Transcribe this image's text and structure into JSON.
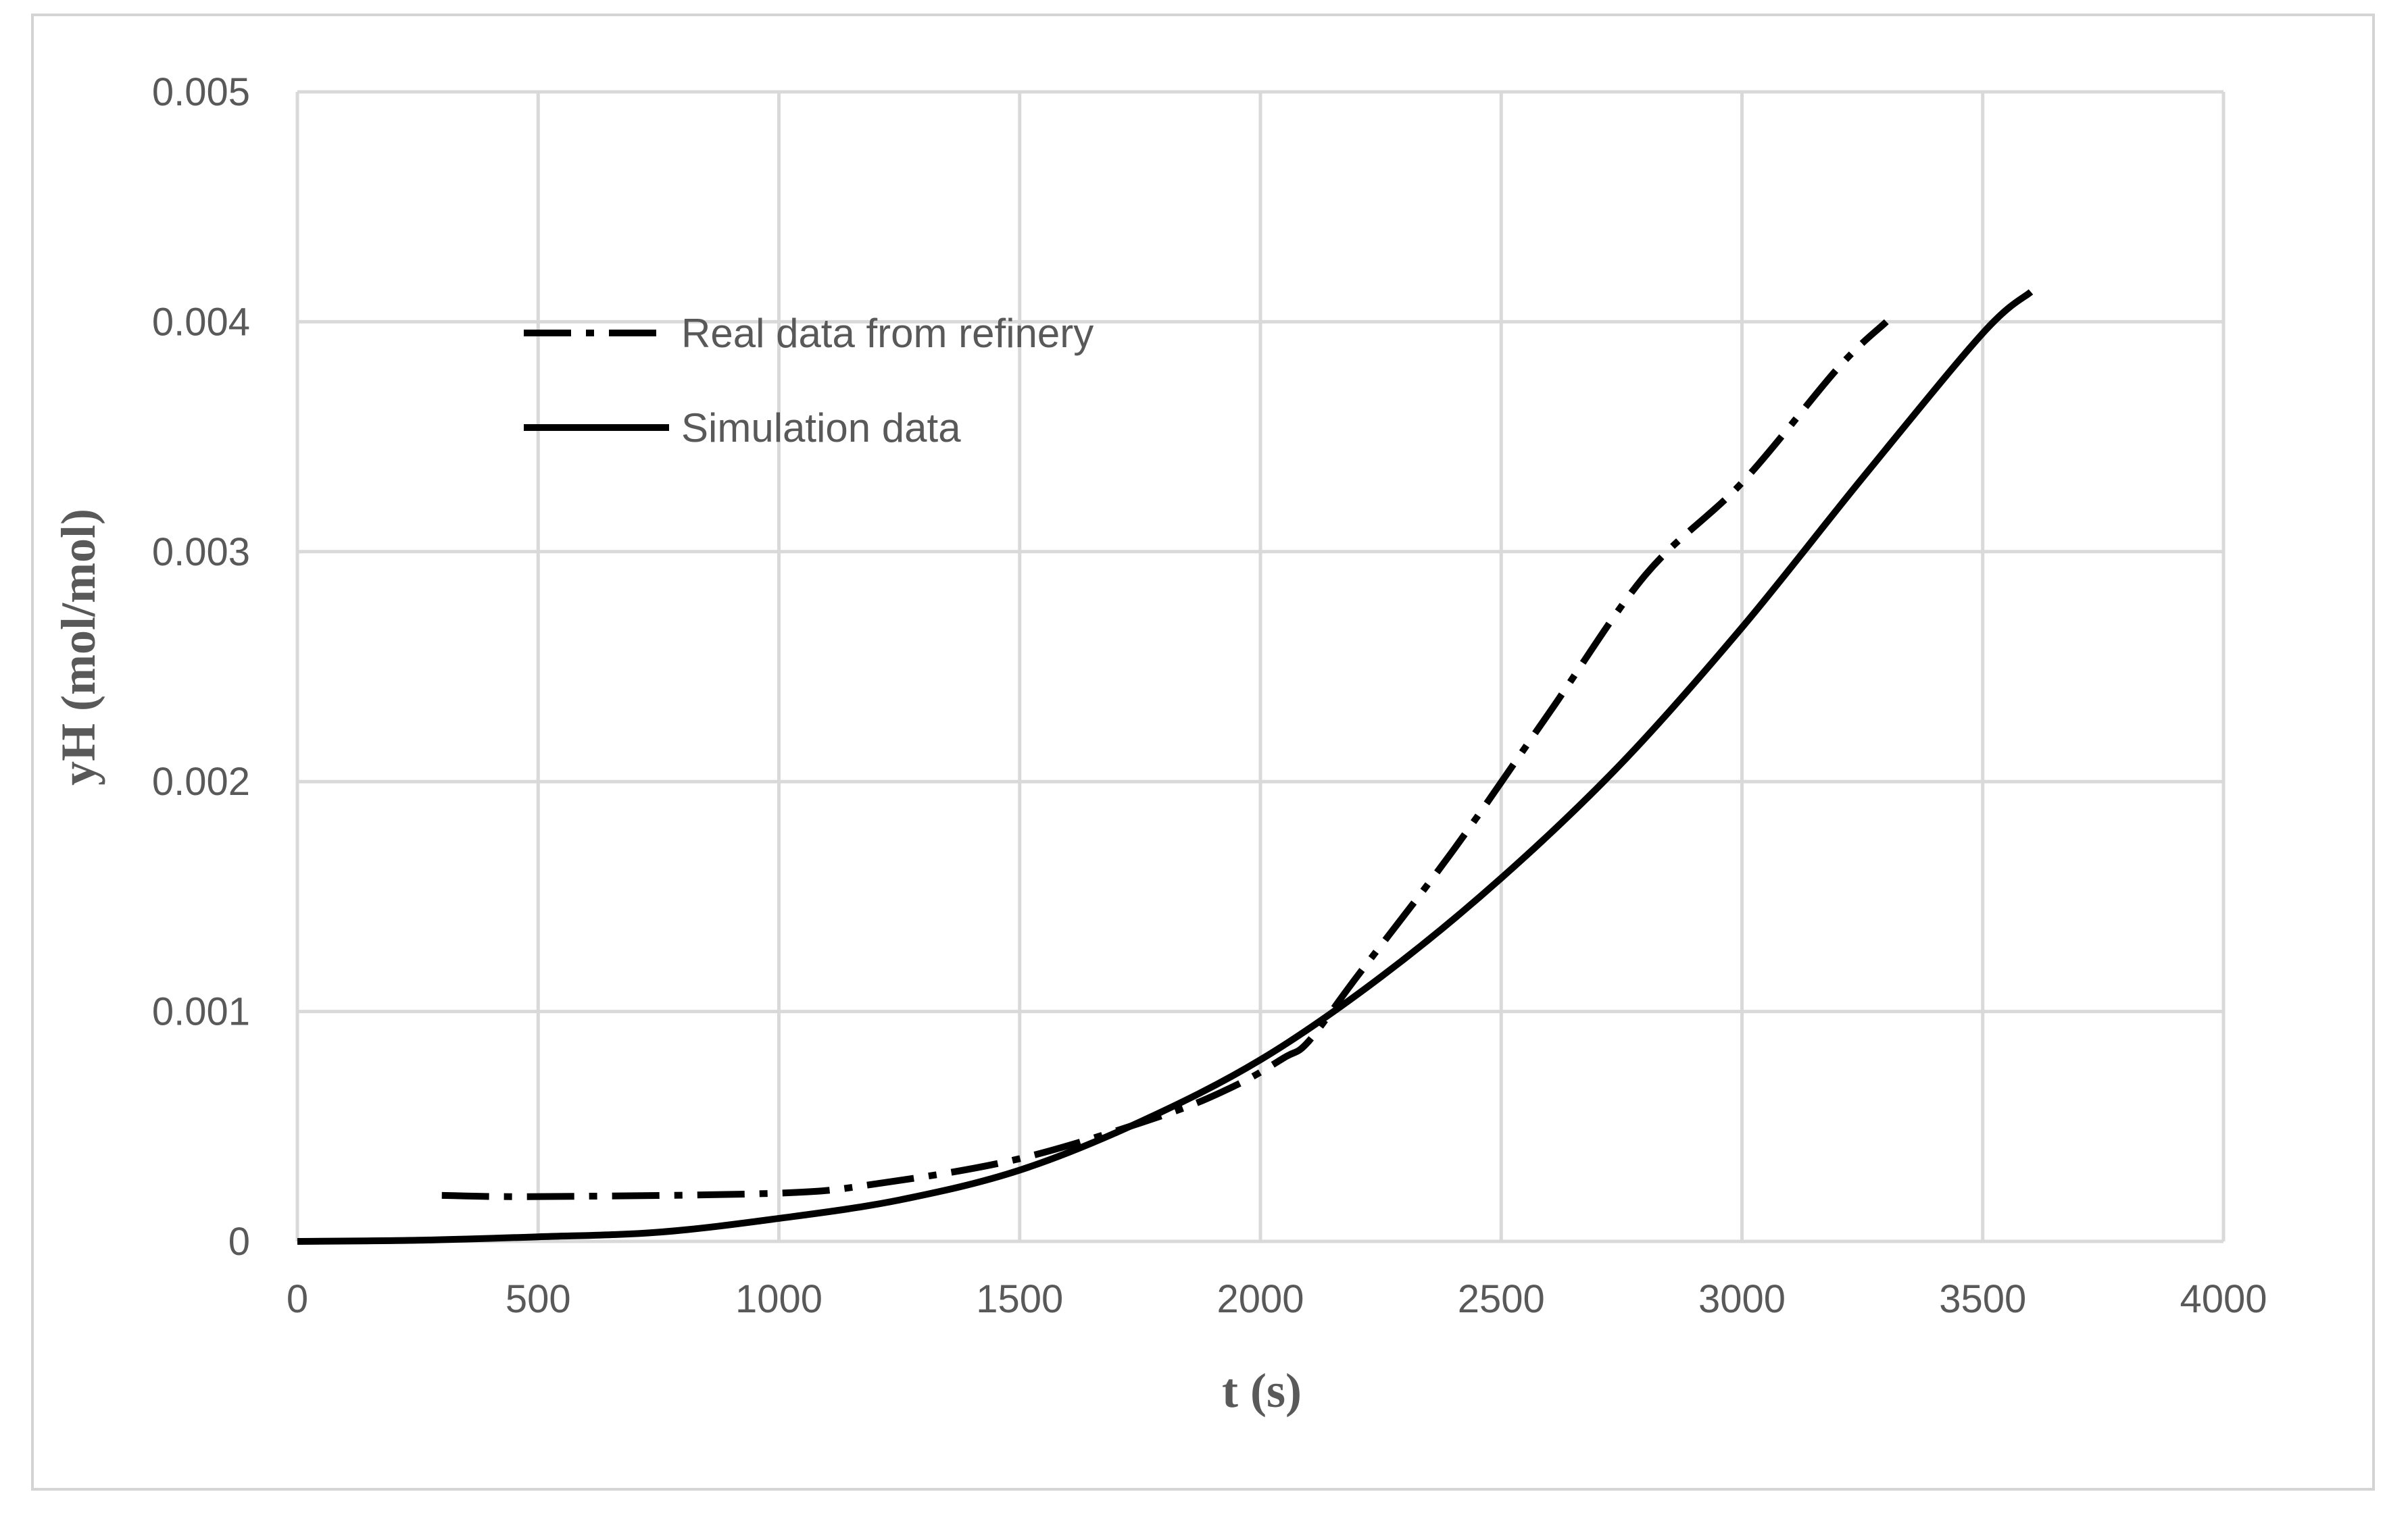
{
  "chart_data": {
    "type": "line",
    "title": "",
    "xlabel": "t (s)",
    "ylabel": "yH (mol/mol)",
    "xlim": [
      0,
      4000
    ],
    "ylim": [
      0,
      0.005
    ],
    "x_ticks": [
      "0",
      "500",
      "1000",
      "1500",
      "2000",
      "2500",
      "3000",
      "3500",
      "4000"
    ],
    "y_ticks": [
      "0",
      "0.001",
      "0.002",
      "0.003",
      "0.004",
      "0.005"
    ],
    "grid": true,
    "legend_position": "top-left",
    "series": [
      {
        "name": "Real data from refinery",
        "style": "dash-dot",
        "color": "#000000",
        "x": [
          300,
          500,
          1000,
          1200,
          1500,
          1800,
          1950,
          2050,
          2100,
          2200,
          2400,
          2600,
          2800,
          3000,
          3200,
          3300
        ],
        "y": [
          0.0002,
          0.000195,
          0.00021,
          0.00025,
          0.00036,
          0.00055,
          0.00068,
          0.0008,
          0.00087,
          0.00115,
          0.0017,
          0.0023,
          0.0029,
          0.0033,
          0.0038,
          0.004
        ]
      },
      {
        "name": "Simulation data",
        "style": "solid",
        "color": "#000000",
        "x": [
          0,
          250,
          500,
          750,
          1000,
          1250,
          1500,
          1750,
          2000,
          2250,
          2500,
          2750,
          3000,
          3250,
          3500,
          3600
        ],
        "y": [
          0,
          5e-06,
          2e-05,
          4e-05,
          0.0001,
          0.00018,
          0.00031,
          0.00052,
          0.00079,
          0.00115,
          0.00158,
          0.00208,
          0.00267,
          0.00332,
          0.00395,
          0.00413
        ]
      }
    ]
  }
}
